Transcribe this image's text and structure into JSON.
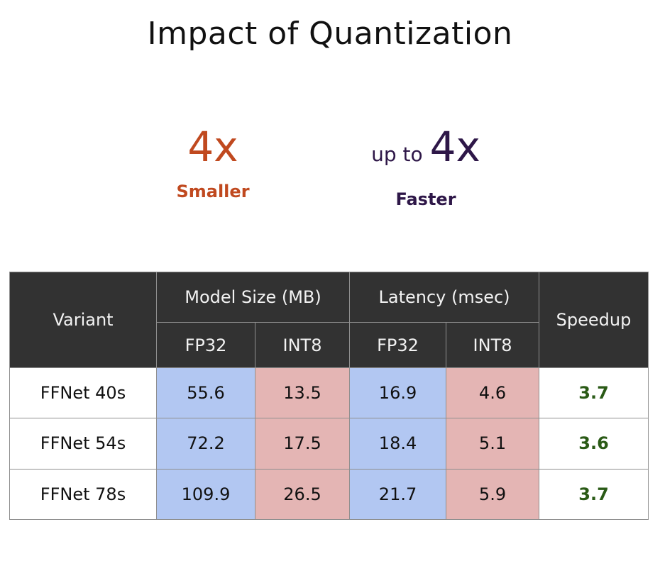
{
  "title": "Impact of Quantization",
  "stats": {
    "smaller": {
      "value": "4x",
      "label": "Smaller",
      "color": "#c0491f"
    },
    "faster": {
      "prefix": "up to",
      "value": "4x",
      "label": "Faster",
      "color": "#2e1748"
    }
  },
  "table": {
    "headers": {
      "variant": "Variant",
      "model_size": "Model Size (MB)",
      "latency": "Latency (msec)",
      "speedup": "Speedup",
      "fp32": "FP32",
      "int8": "INT8"
    },
    "rows": [
      {
        "variant": "FFNet 40s",
        "size_fp32": "55.6",
        "size_int8": "13.5",
        "lat_fp32": "16.9",
        "lat_int8": "4.6",
        "speedup": "3.7"
      },
      {
        "variant": "FFNet 54s",
        "size_fp32": "72.2",
        "size_int8": "17.5",
        "lat_fp32": "18.4",
        "lat_int8": "5.1",
        "speedup": "3.6"
      },
      {
        "variant": "FFNet 78s",
        "size_fp32": "109.9",
        "size_int8": "26.5",
        "lat_fp32": "21.7",
        "lat_int8": "5.9",
        "speedup": "3.7"
      }
    ]
  },
  "colors": {
    "header_bg": "#323232",
    "fp32_cell": "#b2c7f2",
    "int8_cell": "#e4b5b4",
    "speedup_text": "#2a5a16"
  }
}
